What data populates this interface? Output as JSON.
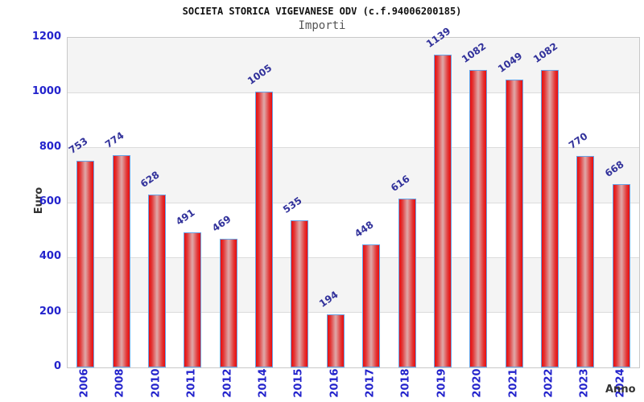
{
  "chart_data": {
    "type": "bar",
    "title": "SOCIETA STORICA VIGEVANESE ODV (c.f.94006200185)",
    "subtitle": "Importi",
    "xlabel": "Anno",
    "ylabel": "Euro",
    "categories": [
      "2006",
      "2008",
      "2010",
      "2011",
      "2012",
      "2014",
      "2015",
      "2016",
      "2017",
      "2018",
      "2019",
      "2020",
      "2021",
      "2022",
      "2023",
      "2024"
    ],
    "values": [
      753,
      774,
      628,
      491,
      469,
      1005,
      535,
      194,
      448,
      616,
      1139,
      1082,
      1049,
      1082,
      770,
      668
    ],
    "ylim": [
      0,
      1200
    ],
    "y_ticks": [
      0,
      200,
      400,
      600,
      800,
      1000,
      1200
    ],
    "grid": "alternating-horizontal-bands",
    "legend": "none",
    "colors": {
      "bar_fill_edge": "#ea0c0c",
      "bar_fill_center": "#dfa3a3",
      "bar_border": "#67a3e6",
      "tick_label": "#2323cc",
      "value_label": "#32329b",
      "band_gray": "#f4f4f4",
      "plot_border": "#c8c8c8",
      "title": "#111111",
      "subtitle": "#555555",
      "axis_title": "#333333"
    }
  }
}
